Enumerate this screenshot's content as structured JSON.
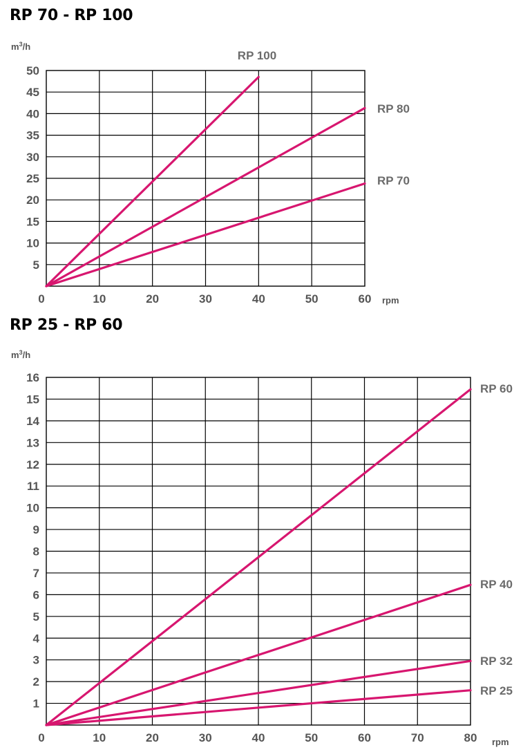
{
  "chart_data": [
    {
      "type": "line",
      "title": "RP 70 - RP 100",
      "ylabel_main": "m",
      "ylabel_sup": "3",
      "ylabel_tail": "/h",
      "xlabel": "rpm",
      "xlim": [
        0,
        60
      ],
      "ylim": [
        0,
        50
      ],
      "x_ticks": [
        "0",
        "10",
        "20",
        "30",
        "40",
        "50",
        "60"
      ],
      "y_ticks": [
        "5",
        "10",
        "15",
        "20",
        "25",
        "30",
        "35",
        "40",
        "45",
        "50"
      ],
      "grid": true,
      "series": [
        {
          "name": "RP 100",
          "x": [
            0,
            40
          ],
          "y": [
            0,
            48.5
          ]
        },
        {
          "name": "RP 80",
          "x": [
            0,
            60
          ],
          "y": [
            0,
            41.3
          ]
        },
        {
          "name": "RP 70",
          "x": [
            0,
            60
          ],
          "y": [
            0,
            23.8
          ]
        }
      ],
      "colors": {
        "line": "#d7166f"
      }
    },
    {
      "type": "line",
      "title": "RP 25 - RP 60",
      "ylabel_main": "m",
      "ylabel_sup": "3",
      "ylabel_tail": "/h",
      "xlabel": "rpm",
      "xlim": [
        0,
        80
      ],
      "ylim": [
        0,
        16
      ],
      "x_ticks": [
        "0",
        "10",
        "20",
        "30",
        "40",
        "50",
        "60",
        "70",
        "80"
      ],
      "y_ticks": [
        "1",
        "2",
        "3",
        "4",
        "5",
        "6",
        "7",
        "8",
        "9",
        "10",
        "11",
        "12",
        "13",
        "14",
        "15",
        "16"
      ],
      "grid": true,
      "series": [
        {
          "name": "RP 60",
          "x": [
            0,
            80
          ],
          "y": [
            0,
            15.45
          ]
        },
        {
          "name": "RP 40",
          "x": [
            0,
            80
          ],
          "y": [
            0,
            6.45
          ]
        },
        {
          "name": "RP 32",
          "x": [
            0,
            80
          ],
          "y": [
            0,
            2.95
          ]
        },
        {
          "name": "RP 25",
          "x": [
            0,
            80
          ],
          "y": [
            0,
            1.6
          ]
        }
      ],
      "colors": {
        "line": "#d7166f"
      }
    }
  ]
}
